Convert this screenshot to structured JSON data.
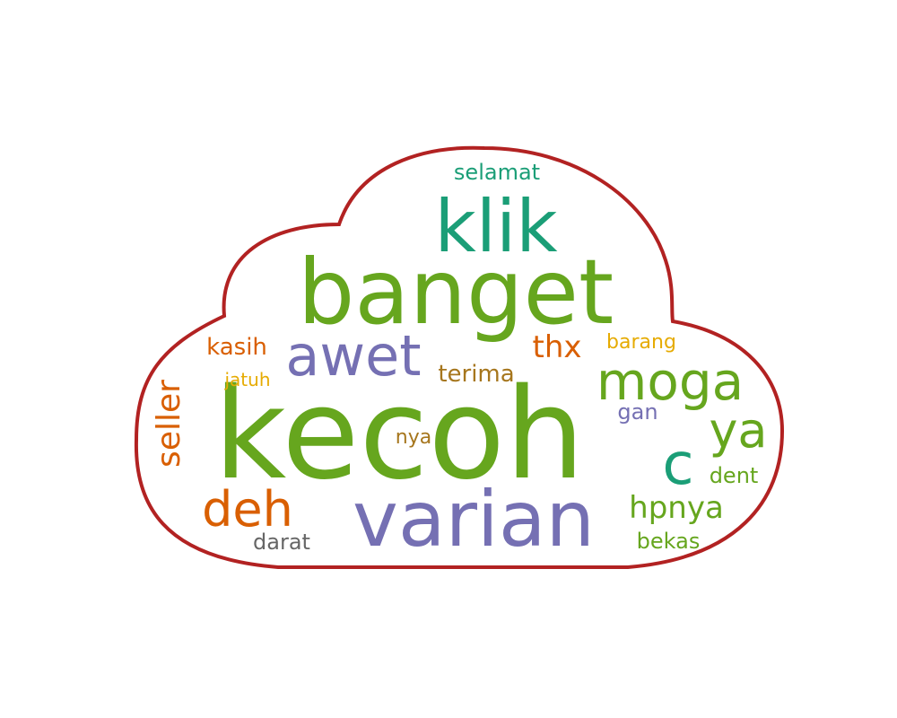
{
  "outline_color": "#b22222",
  "palette": {
    "green": "#66a61e",
    "teal": "#1b9e77",
    "purple": "#7570b3",
    "orange": "#d95f02",
    "gold": "#e6ab02",
    "brown": "#a6761d",
    "gray": "#666666"
  },
  "words": [
    {
      "id": "kecoh",
      "text": "kecoh",
      "color": "#66a61e"
    },
    {
      "id": "banget",
      "text": "banget",
      "color": "#66a61e"
    },
    {
      "id": "klik",
      "text": "klik",
      "color": "#1b9e77"
    },
    {
      "id": "varian",
      "text": "varian",
      "color": "#7570b3"
    },
    {
      "id": "awet",
      "text": "awet",
      "color": "#7570b3"
    },
    {
      "id": "moga",
      "text": "moga",
      "color": "#66a61e"
    },
    {
      "id": "deh",
      "text": "deh",
      "color": "#d95f02"
    },
    {
      "id": "c",
      "text": "c",
      "color": "#1b9e77"
    },
    {
      "id": "ya",
      "text": "ya",
      "color": "#66a61e"
    },
    {
      "id": "seller",
      "text": "seller",
      "color": "#d95f02"
    },
    {
      "id": "hpnya",
      "text": "hpnya",
      "color": "#66a61e"
    },
    {
      "id": "thx",
      "text": "thx",
      "color": "#d95f02"
    },
    {
      "id": "terima",
      "text": "terima",
      "color": "#a6761d"
    },
    {
      "id": "kasih",
      "text": "kasih",
      "color": "#d95f02"
    },
    {
      "id": "selamat",
      "text": "selamat",
      "color": "#1b9e77"
    },
    {
      "id": "barang",
      "text": "barang",
      "color": "#e6ab02"
    },
    {
      "id": "gan",
      "text": "gan",
      "color": "#7570b3"
    },
    {
      "id": "dent",
      "text": "dent",
      "color": "#66a61e"
    },
    {
      "id": "nya",
      "text": "nya",
      "color": "#a6761d"
    },
    {
      "id": "jatuh",
      "text": "jatuh",
      "color": "#e6ab02"
    },
    {
      "id": "darat",
      "text": "darat",
      "color": "#666666"
    },
    {
      "id": "bekas",
      "text": "bekas",
      "color": "#66a61e"
    }
  ]
}
